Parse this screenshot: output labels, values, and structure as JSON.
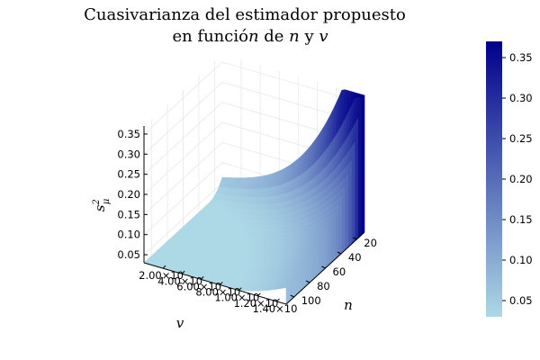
{
  "chart_data": {
    "type": "surface",
    "title_line1": "Cuasivarianza del estimador propuesto",
    "title_line2": "en función de n y v",
    "xlabel": "v",
    "ylabel": "n",
    "zlabel": "s²_μ",
    "x_tick_labels": [
      "2.00×10",
      "4.00×10",
      "6.00×10",
      "8.00×10",
      "1.00×10",
      "1.20×10",
      "1.40×10"
    ],
    "x_range": [
      10,
      150
    ],
    "y_ticks": [
      20,
      40,
      60,
      80,
      100
    ],
    "y_range": [
      10,
      110
    ],
    "z_ticks": [
      "0.05",
      "0.10",
      "0.15",
      "0.20",
      "0.25",
      "0.30",
      "0.35"
    ],
    "z_range": [
      0.03,
      0.37
    ],
    "colorbar_ticks": [
      "0.05",
      "0.10",
      "0.15",
      "0.20",
      "0.25",
      "0.30",
      "0.35"
    ],
    "colorbar_range": [
      0.03,
      0.37
    ],
    "colormap": [
      "#add8e6",
      "#00008b"
    ],
    "surface_profile_at_n20": [
      {
        "v": 10,
        "s2": 0.05
      },
      {
        "v": 30,
        "s2": 0.09
      },
      {
        "v": 50,
        "s2": 0.13
      },
      {
        "v": 70,
        "s2": 0.17
      },
      {
        "v": 90,
        "s2": 0.21
      },
      {
        "v": 110,
        "s2": 0.29
      },
      {
        "v": 130,
        "s2": 0.36
      },
      {
        "v": 150,
        "s2": 0.33
      }
    ]
  }
}
